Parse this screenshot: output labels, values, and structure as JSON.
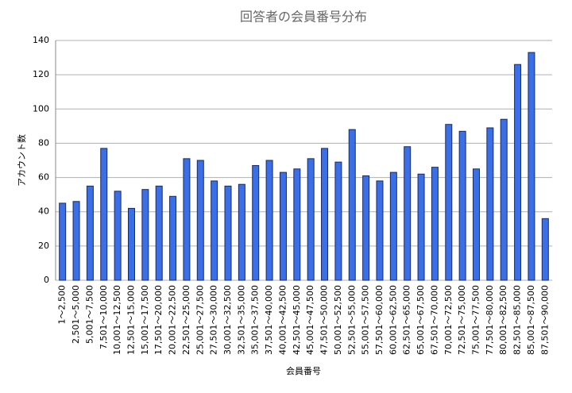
{
  "chart_data": {
    "type": "bar",
    "title": "回答者の会員番号分布",
    "x_label": "会員番号",
    "y_label": "アカウント数",
    "categories": [
      "1～2,500",
      "2,501～5,000",
      "5,001～7,500",
      "7,501～10,000",
      "10,001～12,500",
      "12,501～15,000",
      "15,001～17,500",
      "17,501～20,000",
      "20,001～22,500",
      "22,501～25,000",
      "25,001～27,500",
      "27,501～30,000",
      "30,001～32,500",
      "32,501～35,000",
      "35,001～37,500",
      "37,501～40,000",
      "40,001～42,500",
      "42,501～45,000",
      "45,001～47,500",
      "47,501～50,000",
      "50,001～52,500",
      "52,501～55,000",
      "55,001～57,500",
      "57,501～60,000",
      "60,001～62,500",
      "62,501～65,000",
      "65,001～67,500",
      "67,501～70,000",
      "70,001～72,500",
      "72,501～75,000",
      "75,001～77,500",
      "77,501～80,000",
      "80,001～82,500",
      "82,501～85,000",
      "85,001～87,500",
      "87,501～90,000"
    ],
    "values": [
      45,
      46,
      55,
      77,
      52,
      42,
      53,
      55,
      49,
      71,
      70,
      58,
      55,
      56,
      67,
      70,
      63,
      65,
      71,
      77,
      69,
      88,
      61,
      58,
      63,
      78,
      62,
      66,
      91,
      87,
      65,
      89,
      94,
      126,
      133,
      36
    ],
    "color": "#3a6fe8",
    "ylim": [
      0,
      140
    ],
    "yticks": [
      0,
      20,
      40,
      60,
      80,
      100,
      120,
      140
    ],
    "grid": true
  }
}
